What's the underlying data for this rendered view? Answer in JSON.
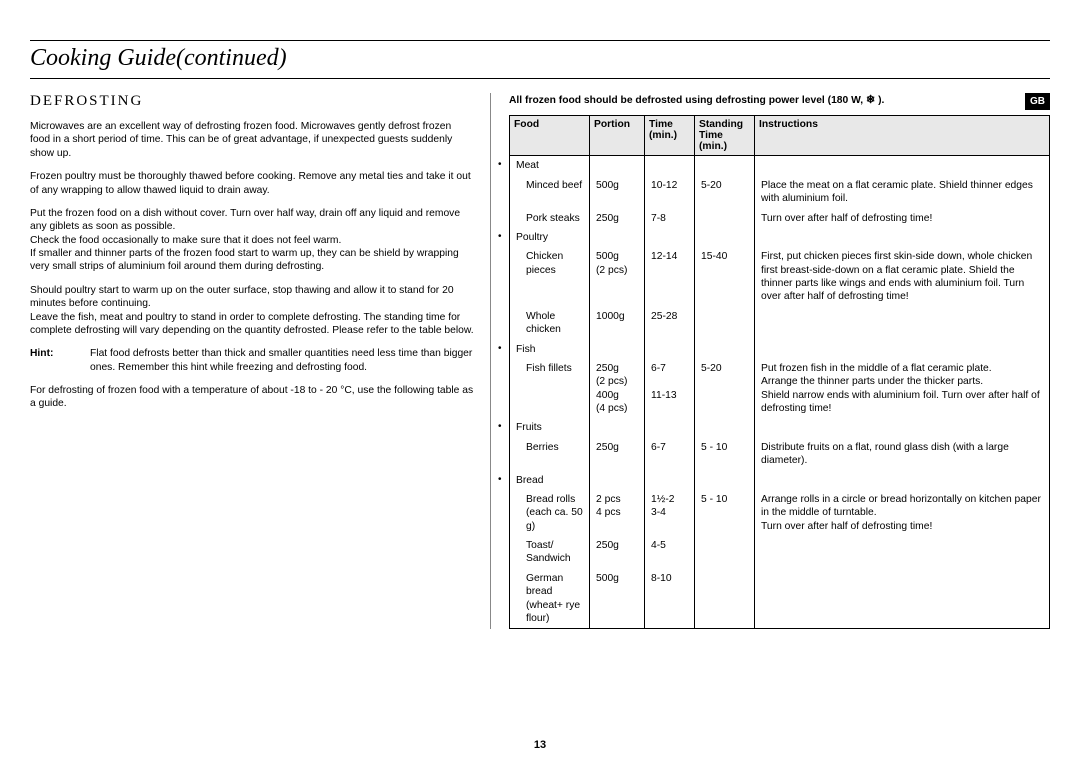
{
  "page": {
    "title": "Cooking Guide(continued)",
    "number": "13",
    "badge": "GB"
  },
  "left": {
    "heading": "DEFROSTING",
    "p1": "Microwaves are an excellent way of defrosting frozen food. Microwaves gently defrost frozen food in a short period of time. This can be of great advantage, if unexpected guests suddenly show up.",
    "p2": "Frozen poultry must be thoroughly thawed before cooking. Remove any metal ties and take it out of any wrapping to allow thawed liquid to drain away.",
    "p3": "Put the frozen food on a dish without cover. Turn over half way, drain off any liquid and remove any giblets as soon as possible.\nCheck the food occasionally to make sure that it does not feel warm.\nIf smaller and thinner parts of the frozen food start to warm up, they can be shield by wrapping very small strips of aluminium foil around them during defrosting.",
    "p4": "Should poultry start to warm  up on the outer surface, stop thawing and allow it to stand for 20 minutes before continuing.\nLeave the fish, meat and poultry to stand in order to complete defrosting. The standing time for complete defrosting will vary depending on the quantity defrosted. Please refer to the table below.",
    "hint_label": "Hint:",
    "hint_text": "Flat food defrosts better than thick and smaller quantities need less time than bigger ones. Remember this hint while freezing and defrosting food.",
    "p5": "For defrosting of frozen food with a temperature of about -18 to - 20 °C, use the following table as a guide."
  },
  "right": {
    "intro": "All frozen food should be defrosted using defrosting power level (180 W,",
    "intro_close": " ).",
    "snow_symbol": "❄",
    "headers": {
      "food": "Food",
      "portion": "Portion",
      "time": "Time (min.)",
      "standing": "Standing Time (min.)",
      "instructions": "Instructions"
    },
    "rows": [
      {
        "category": "Meat",
        "items": [
          {
            "name": "Minced beef",
            "portion": "500g",
            "time": "10-12",
            "standing": "5-20",
            "instr": "Place the meat on a flat ceramic plate. Shield thinner edges with aluminium foil."
          },
          {
            "name": "Pork steaks",
            "portion": "250g",
            "time": "7-8",
            "standing": "",
            "instr": "Turn over after half of defrosting time!"
          }
        ]
      },
      {
        "category": "Poultry",
        "items": [
          {
            "name": "Chicken pieces",
            "portion": "500g\n(2 pcs)",
            "time": "12-14",
            "standing": "15-40",
            "instr": "First, put chicken pieces first skin-side down, whole chicken first breast-side-down on a flat ceramic plate. Shield the thinner parts like wings and ends with aluminium foil. Turn over after half of defrosting time!"
          },
          {
            "name": "Whole chicken",
            "portion": "1000g",
            "time": "25-28",
            "standing": "",
            "instr": ""
          }
        ]
      },
      {
        "category": "Fish",
        "items": [
          {
            "name": "Fish fillets",
            "portion": "250g\n(2 pcs)\n400g\n(4 pcs)",
            "time": "6-7\n\n11-13",
            "standing": "5-20",
            "instr": "Put frozen fish in the middle of a flat ceramic plate.\nArrange the thinner parts under the thicker parts.\nShield narrow ends with aluminium foil. Turn over after half of defrosting time!"
          }
        ]
      },
      {
        "category": "Fruits",
        "items": [
          {
            "name": "Berries",
            "portion": "250g",
            "time": "6-7",
            "standing": "5 - 10",
            "instr": "Distribute fruits on a flat, round glass dish (with a large diameter)."
          }
        ]
      },
      {
        "category": "Bread",
        "items": [
          {
            "name": "Bread rolls (each ca. 50 g)",
            "portion": "2 pcs\n4 pcs",
            "time": "1½-2\n3-4",
            "standing": "5 - 10",
            "instr": "Arrange rolls in a circle or bread horizontally on kitchen paper in the middle of turntable.\nTurn over after half of defrosting time!"
          },
          {
            "name": "Toast/ Sandwich",
            "portion": "250g",
            "time": "4-5",
            "standing": "",
            "instr": ""
          },
          {
            "name": "German bread (wheat+ rye flour)",
            "portion": "500g",
            "time": "8-10",
            "standing": "",
            "instr": ""
          }
        ]
      }
    ]
  },
  "style": {
    "bg": "#ffffff",
    "text": "#000000",
    "header_bg": "#e8e8e8"
  }
}
